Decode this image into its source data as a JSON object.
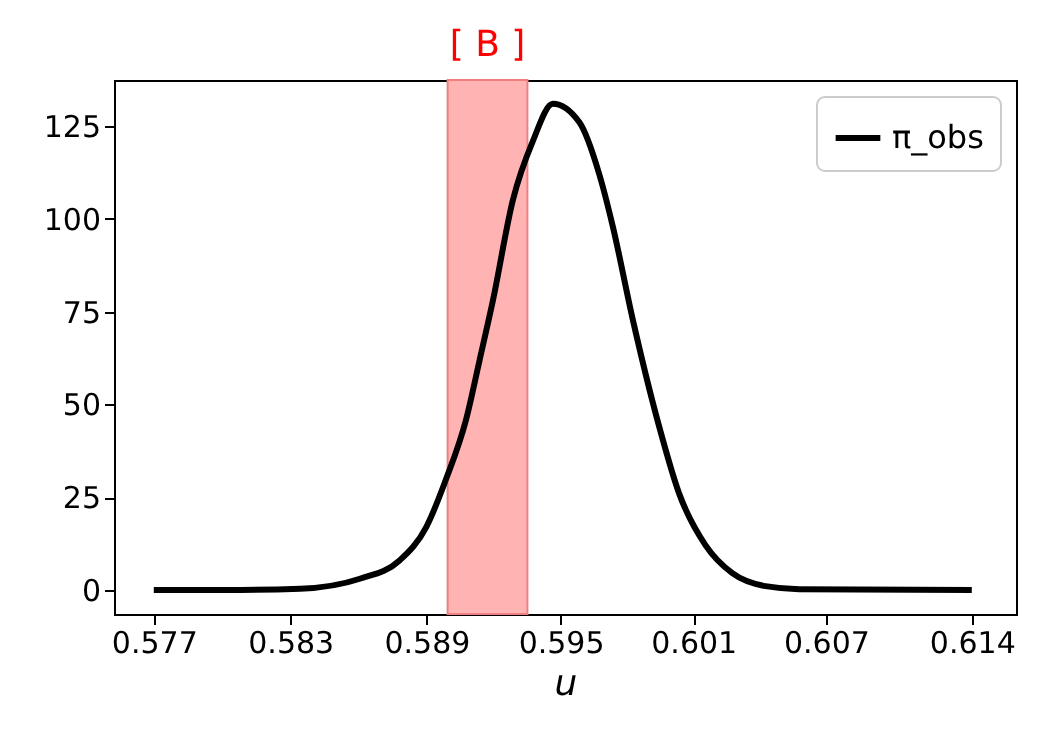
{
  "chart_data": {
    "type": "line",
    "xlabel": "u",
    "x": [
      0.577,
      0.58091,
      0.58362,
      0.58632,
      0.58813,
      0.58933,
      0.59023,
      0.59113,
      0.59174,
      0.59234,
      0.59324,
      0.59415,
      0.59505,
      0.59625,
      0.59715,
      0.59776,
      0.59866,
      0.59986,
      0.60076,
      0.60196,
      0.60317,
      0.60467,
      0.60618,
      0.614
    ],
    "series": [
      {
        "name": "π_obs",
        "color": "#000000",
        "values": [
          0,
          0,
          0.3,
          3,
          8,
          17,
          30,
          46,
          62,
          78,
          105,
          121,
          131,
          126,
          112,
          98,
          73,
          44,
          26,
          12,
          4.5,
          1,
          0.2,
          0
        ]
      }
    ],
    "xlim": [
      0.5752,
      0.616
    ],
    "xticks": [
      {
        "value": 0.577,
        "label": "0.577"
      },
      {
        "value": 0.58317,
        "label": "0.583"
      },
      {
        "value": 0.58933,
        "label": "0.589"
      },
      {
        "value": 0.5954,
        "label": "0.595"
      },
      {
        "value": 0.6014,
        "label": "0.601"
      },
      {
        "value": 0.6074,
        "label": "0.607"
      },
      {
        "value": 0.614,
        "label": "0.614"
      }
    ],
    "ylim": [
      -6.5,
      137.4
    ],
    "yticks": [
      0,
      25,
      50,
      75,
      100,
      125
    ],
    "bands": [
      {
        "axis": "x",
        "from": 0.59029,
        "to": 0.5939,
        "label": "[ B ]",
        "color": "#ffb3b3"
      }
    ],
    "grid": false,
    "legend": "top right",
    "marker": "none",
    "line_style": "solid"
  }
}
